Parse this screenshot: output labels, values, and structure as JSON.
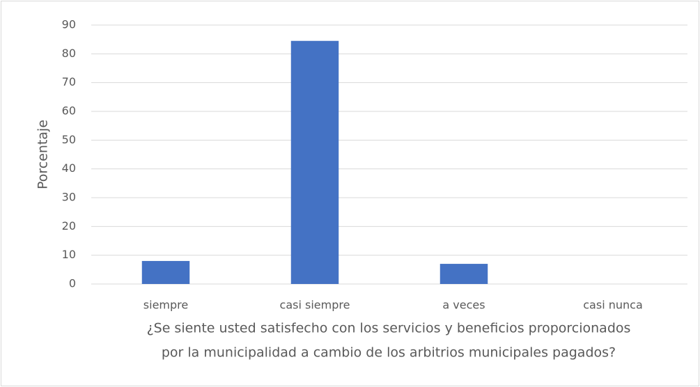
{
  "chart_data": {
    "type": "bar",
    "categories": [
      "siempre",
      "casi siempre",
      "a veces",
      "casi nunca"
    ],
    "values": [
      8,
      84.5,
      7,
      0
    ],
    "color": "#4472c4",
    "ylim": [
      0,
      90
    ],
    "yticks": [
      0,
      10,
      20,
      30,
      40,
      50,
      60,
      70,
      80,
      90
    ],
    "grid": true,
    "ylabel": "Porcentaje",
    "xlabel": [
      "¿Se siente usted satisfecho con los servicios y beneficios proporcionados",
      "por la municipalidad a cambio de los arbitrios municipales pagados?"
    ]
  }
}
